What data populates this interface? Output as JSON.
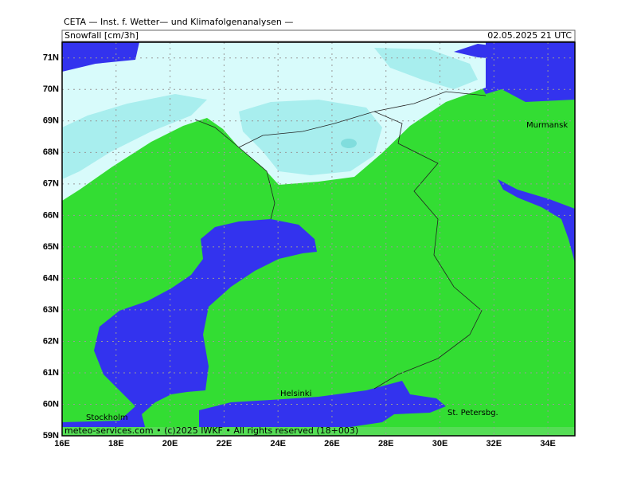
{
  "header": "CETA — Inst. f. Wetter— und Klimafolgenanalysen —",
  "map": {
    "title": "Snowfall [cm/3h]",
    "valid_time": "02.05.2025 21 UTC",
    "lon_range": [
      16,
      35
    ],
    "lat_range": [
      59,
      71.5
    ],
    "lon_ticks": [
      {
        "value": 16,
        "label": "16E"
      },
      {
        "value": 18,
        "label": "18E"
      },
      {
        "value": 20,
        "label": "20E"
      },
      {
        "value": 22,
        "label": "22E"
      },
      {
        "value": 24,
        "label": "24E"
      },
      {
        "value": 26,
        "label": "26E"
      },
      {
        "value": 28,
        "label": "28E"
      },
      {
        "value": 30,
        "label": "30E"
      },
      {
        "value": 32,
        "label": "32E"
      },
      {
        "value": 34,
        "label": "34E"
      }
    ],
    "lat_ticks": [
      {
        "value": 59,
        "label": "59N"
      },
      {
        "value": 60,
        "label": "60N"
      },
      {
        "value": 61,
        "label": "61N"
      },
      {
        "value": 62,
        "label": "62N"
      },
      {
        "value": 63,
        "label": "63N"
      },
      {
        "value": 64,
        "label": "64N"
      },
      {
        "value": 65,
        "label": "65N"
      },
      {
        "value": 66,
        "label": "66N"
      },
      {
        "value": 67,
        "label": "67N"
      },
      {
        "value": 68,
        "label": "68N"
      },
      {
        "value": 69,
        "label": "69N"
      },
      {
        "value": 70,
        "label": "70N"
      },
      {
        "value": 71,
        "label": "71N"
      }
    ],
    "places": [
      "Murmansk",
      "Helsinki",
      "Stockholm",
      "St. Petersbg."
    ],
    "footer": "meteo-services.com • (c)2025 IWKF • All rights reserved (18+003)"
  }
}
